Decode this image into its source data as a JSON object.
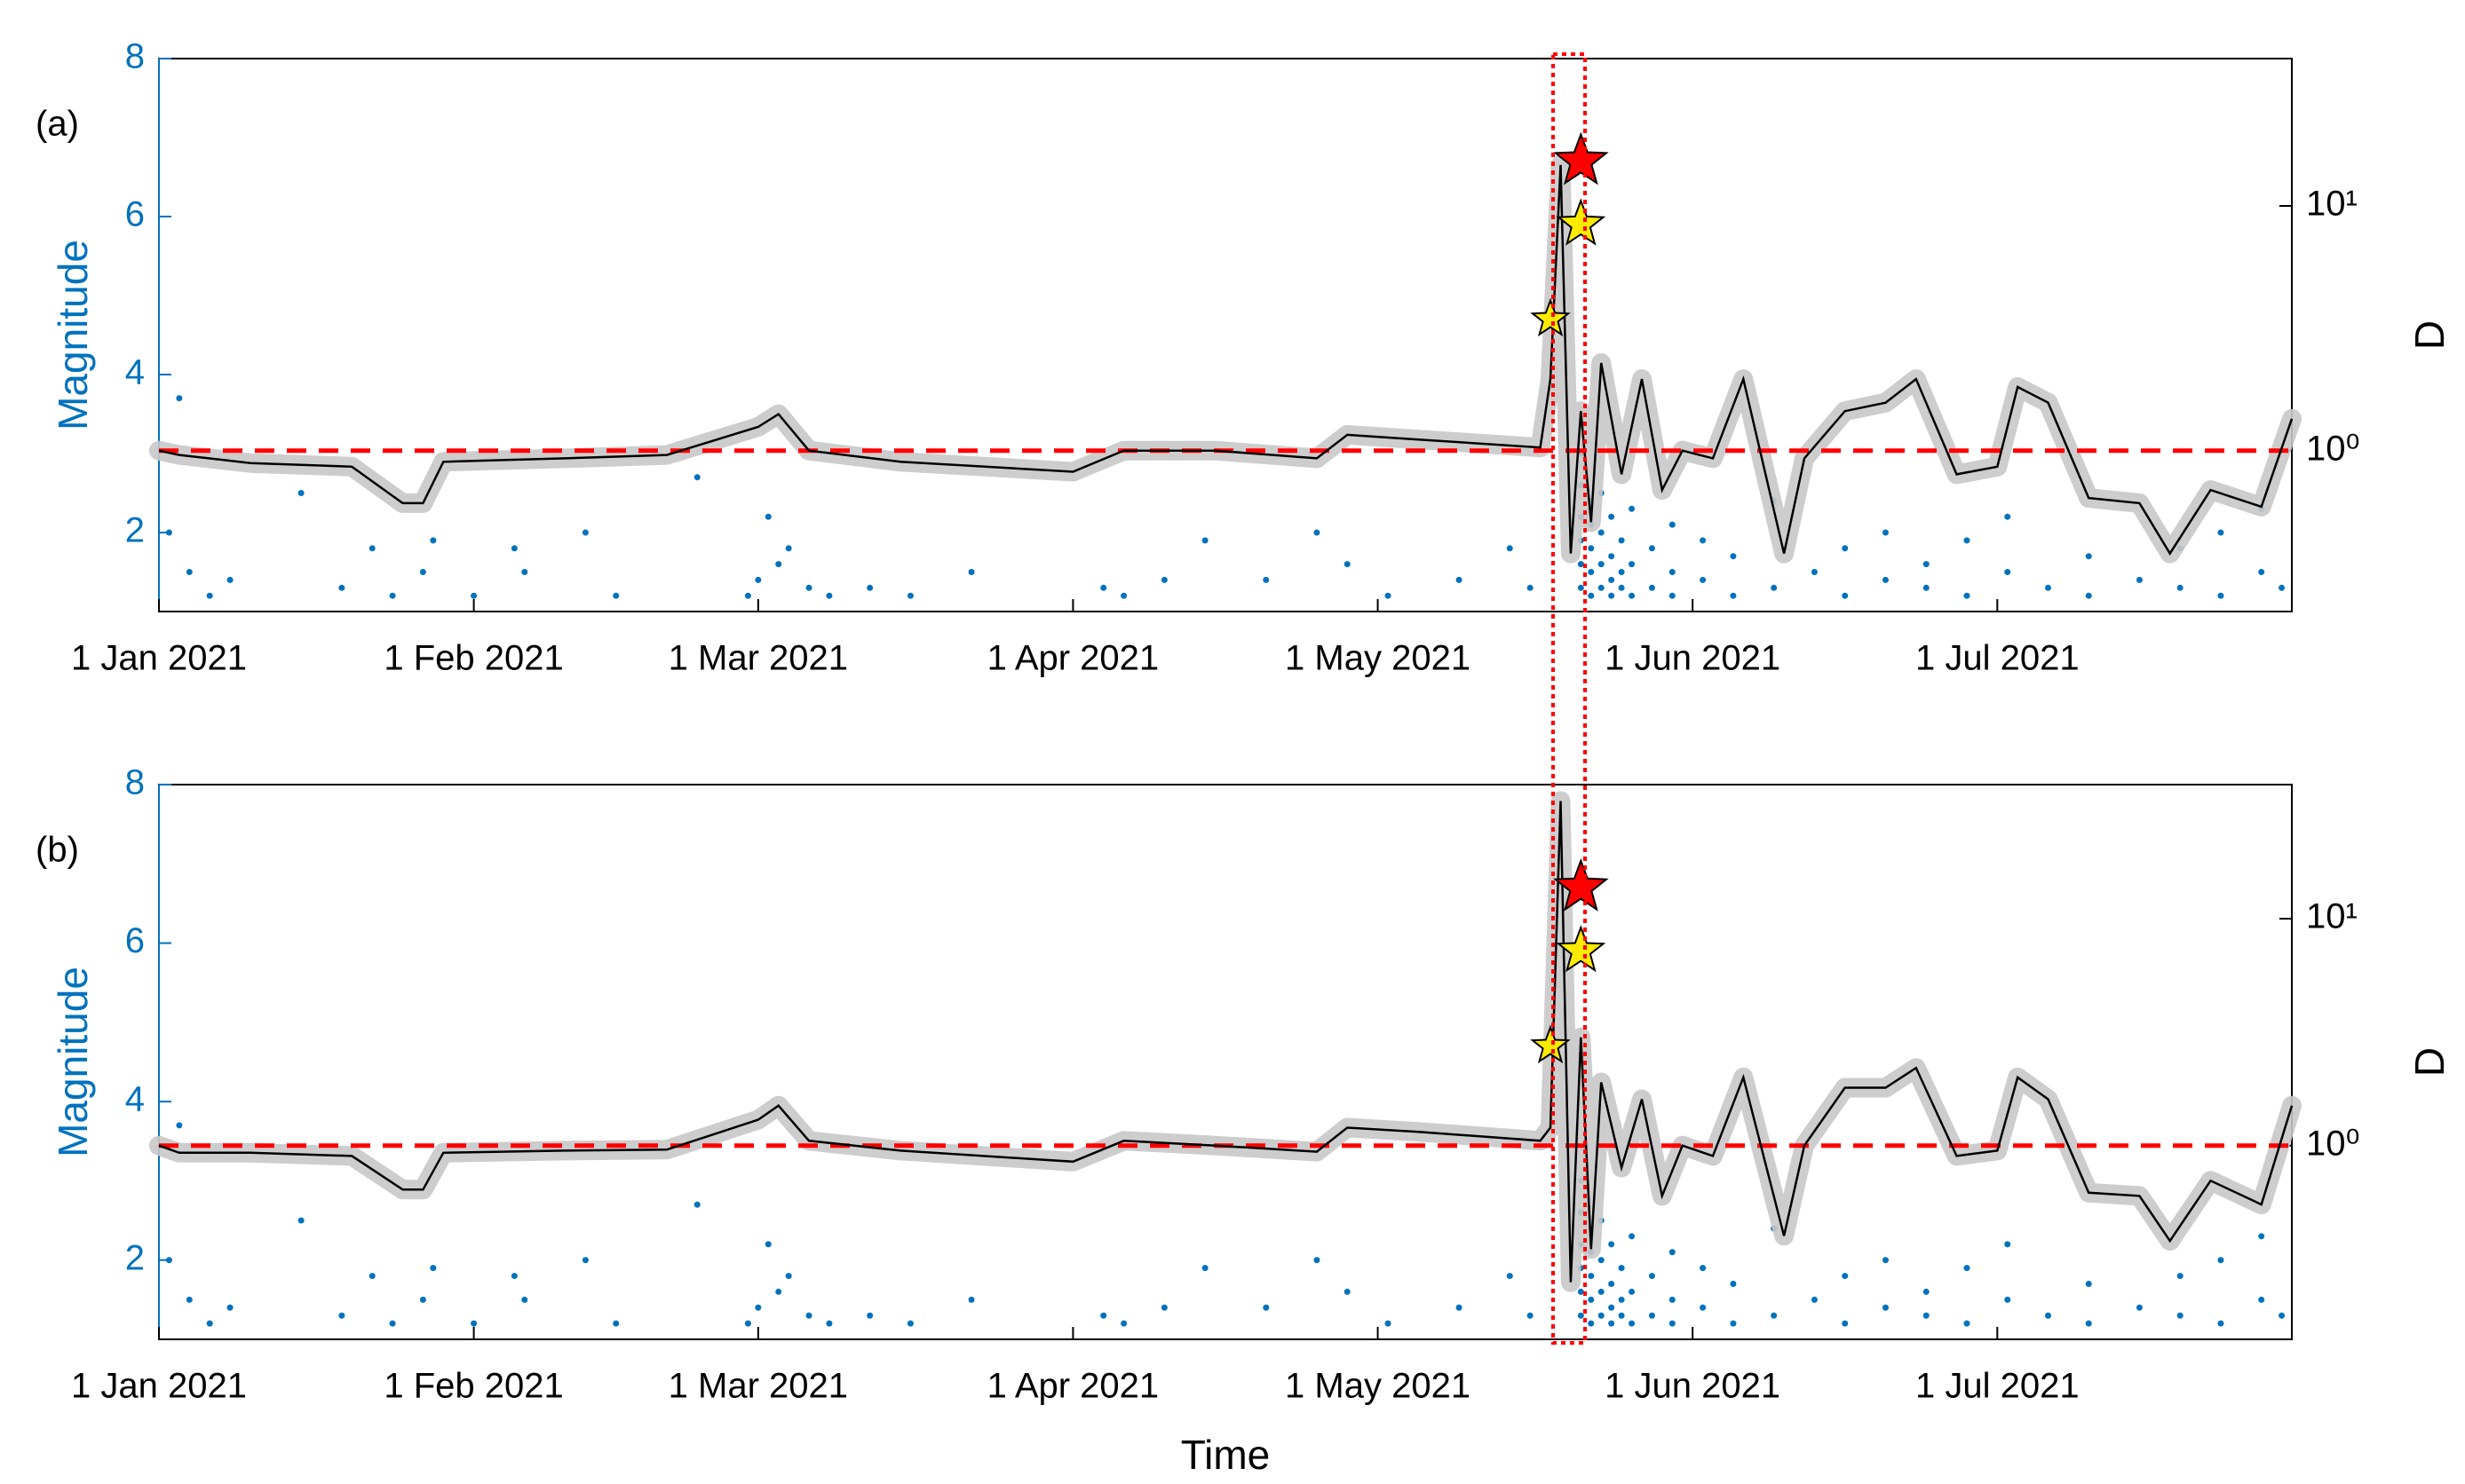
{
  "chart_data": [
    {
      "type": "combo",
      "label": "(a)",
      "ylabel": "Magnitude",
      "y2label": "D",
      "xlim": [
        "2021-01-01",
        "2021-07-30"
      ],
      "xticks": [
        {
          "value": "2021-01-01",
          "label": "1 Jan 2021"
        },
        {
          "value": "2021-02-01",
          "label": "1 Feb 2021"
        },
        {
          "value": "2021-03-01",
          "label": "1 Mar 2021"
        },
        {
          "value": "2021-04-01",
          "label": "1 Apr 2021"
        },
        {
          "value": "2021-05-01",
          "label": "1 May 2021"
        },
        {
          "value": "2021-06-01",
          "label": "1 Jun 2021"
        },
        {
          "value": "2021-07-01",
          "label": "1 Jul 2021"
        }
      ],
      "ylim": [
        1,
        8
      ],
      "yticks": [
        2,
        4,
        6,
        8
      ],
      "y2lim": [
        0.22,
        40
      ],
      "y2scale": "log",
      "y2ticks": [
        {
          "value": 1,
          "label": "10⁰"
        },
        {
          "value": 10,
          "label": "10¹"
        }
      ],
      "hline": {
        "value": 1,
        "axis": "y2",
        "color": "#ff0000"
      },
      "series": [
        {
          "type": "scatter",
          "color": "#0072bd",
          "x": [
            "2021-01-02",
            "2021-01-03",
            "2021-01-04",
            "2021-01-06",
            "2021-01-08",
            "2021-01-15",
            "2021-01-19",
            "2021-01-22",
            "2021-01-24",
            "2021-01-27",
            "2021-01-28",
            "2021-02-01",
            "2021-02-05",
            "2021-02-06",
            "2021-02-12",
            "2021-02-15",
            "2021-02-23",
            "2021-02-28",
            "2021-03-01",
            "2021-03-02",
            "2021-03-03",
            "2021-03-04",
            "2021-03-06",
            "2021-03-08",
            "2021-03-12",
            "2021-03-16",
            "2021-03-22",
            "2021-04-04",
            "2021-04-06",
            "2021-04-10",
            "2021-04-14",
            "2021-04-20",
            "2021-04-25",
            "2021-04-28",
            "2021-05-02",
            "2021-05-09",
            "2021-05-14",
            "2021-05-16",
            "2021-05-21",
            "2021-05-21",
            "2021-05-21",
            "2021-05-21",
            "2021-05-21",
            "2021-05-21",
            "2021-05-22",
            "2021-05-22",
            "2021-05-22",
            "2021-05-22",
            "2021-05-22",
            "2021-05-23",
            "2021-05-23",
            "2021-05-23",
            "2021-05-23",
            "2021-05-24",
            "2021-05-24",
            "2021-05-24",
            "2021-05-24",
            "2021-05-25",
            "2021-05-25",
            "2021-05-25",
            "2021-05-26",
            "2021-05-26",
            "2021-05-26",
            "2021-05-28",
            "2021-05-28",
            "2021-05-30",
            "2021-05-30",
            "2021-05-30",
            "2021-06-02",
            "2021-06-02",
            "2021-06-05",
            "2021-06-05",
            "2021-06-09",
            "2021-06-09",
            "2021-06-13",
            "2021-06-16",
            "2021-06-16",
            "2021-06-20",
            "2021-06-20",
            "2021-06-24",
            "2021-06-24",
            "2021-06-28",
            "2021-06-28",
            "2021-07-02",
            "2021-07-02",
            "2021-07-06",
            "2021-07-10",
            "2021-07-10",
            "2021-07-15",
            "2021-07-19",
            "2021-07-19",
            "2021-07-23",
            "2021-07-23",
            "2021-07-27",
            "2021-07-27",
            "2021-07-29"
          ],
          "values": [
            2.0,
            3.7,
            1.5,
            1.2,
            1.4,
            2.5,
            1.3,
            1.8,
            1.2,
            1.5,
            1.9,
            1.2,
            1.8,
            1.5,
            2.0,
            1.2,
            2.7,
            1.2,
            1.4,
            2.2,
            1.6,
            1.8,
            1.3,
            1.2,
            1.3,
            1.2,
            1.5,
            1.3,
            1.2,
            1.4,
            1.9,
            1.4,
            2.0,
            1.6,
            1.2,
            1.4,
            1.8,
            1.3,
            1.3,
            1.6,
            1.9,
            2.2,
            2.6,
            3.0,
            1.2,
            1.5,
            1.8,
            2.1,
            2.4,
            1.3,
            1.6,
            2.0,
            2.5,
            1.2,
            1.4,
            1.7,
            2.2,
            1.3,
            1.5,
            1.9,
            1.2,
            1.6,
            2.3,
            1.3,
            1.8,
            1.2,
            1.5,
            2.1,
            1.4,
            1.9,
            1.2,
            1.7,
            1.3,
            2.4,
            1.5,
            1.2,
            1.8,
            1.4,
            2.0,
            1.3,
            1.6,
            1.2,
            1.9,
            1.5,
            2.2,
            1.3,
            1.2,
            1.7,
            1.4,
            1.3,
            1.8,
            1.2,
            2.0,
            1.5,
            2.3,
            1.3
          ]
        },
        {
          "type": "line",
          "axis": "y2",
          "color": "#000000",
          "x": [
            "2021-01-01",
            "2021-01-03",
            "2021-01-10",
            "2021-01-20",
            "2021-01-25",
            "2021-01-27",
            "2021-01-29",
            "2021-02-10",
            "2021-02-20",
            "2021-03-01",
            "2021-03-03",
            "2021-03-06",
            "2021-03-15",
            "2021-04-01",
            "2021-04-06",
            "2021-04-15",
            "2021-04-25",
            "2021-04-28",
            "2021-05-05",
            "2021-05-17",
            "2021-05-18",
            "2021-05-19",
            "2021-05-20",
            "2021-05-21",
            "2021-05-22",
            "2021-05-23",
            "2021-05-25",
            "2021-05-27",
            "2021-05-29",
            "2021-05-31",
            "2021-06-03",
            "2021-06-06",
            "2021-06-10",
            "2021-06-12",
            "2021-06-16",
            "2021-06-20",
            "2021-06-23",
            "2021-06-27",
            "2021-07-01",
            "2021-07-03",
            "2021-07-06",
            "2021-07-10",
            "2021-07-15",
            "2021-07-18",
            "2021-07-22",
            "2021-07-27",
            "2021-07-30"
          ],
          "values": [
            1.0,
            0.96,
            0.89,
            0.86,
            0.61,
            0.61,
            0.9,
            0.93,
            0.96,
            1.25,
            1.41,
            1.0,
            0.9,
            0.82,
            1.0,
            1.0,
            0.93,
            1.16,
            1.11,
            1.03,
            1.96,
            14.7,
            0.38,
            1.45,
            0.51,
            2.28,
            0.8,
            1.96,
            0.69,
            1.0,
            0.93,
            1.96,
            0.38,
            0.93,
            1.45,
            1.57,
            1.96,
            0.8,
            0.86,
            1.82,
            1.57,
            0.64,
            0.61,
            0.38,
            0.69,
            0.59,
            1.35
          ]
        },
        {
          "type": "star",
          "x": [
            "2021-05-18",
            "2021-05-21",
            "2021-05-21"
          ],
          "values": [
            4.7,
            6.7,
            5.9
          ],
          "colors": [
            "#ffeb00",
            "#ff0000",
            "#ffeb00"
          ]
        }
      ]
    },
    {
      "type": "combo",
      "label": "(b)",
      "ylabel": "Magnitude",
      "y2label": "D",
      "xlabel": "Time",
      "xlim": [
        "2021-01-01",
        "2021-07-30"
      ],
      "xticks": [
        {
          "value": "2021-01-01",
          "label": "1 Jan 2021"
        },
        {
          "value": "2021-02-01",
          "label": "1 Feb 2021"
        },
        {
          "value": "2021-03-01",
          "label": "1 Mar 2021"
        },
        {
          "value": "2021-04-01",
          "label": "1 Apr 2021"
        },
        {
          "value": "2021-05-01",
          "label": "1 May 2021"
        },
        {
          "value": "2021-06-01",
          "label": "1 Jun 2021"
        },
        {
          "value": "2021-07-01",
          "label": "1 Jul 2021"
        }
      ],
      "ylim": [
        1,
        8
      ],
      "yticks": [
        2,
        4,
        6,
        8
      ],
      "y2lim": [
        0.14,
        39
      ],
      "y2scale": "log",
      "y2ticks": [
        {
          "value": 1,
          "label": "10⁰"
        },
        {
          "value": 10,
          "label": "10¹"
        }
      ],
      "hline": {
        "value": 1,
        "axis": "y2",
        "color": "#ff0000"
      },
      "series": [
        {
          "type": "scatter",
          "color": "#0072bd",
          "x": [
            "2021-01-02",
            "2021-01-03",
            "2021-01-04",
            "2021-01-06",
            "2021-01-08",
            "2021-01-15",
            "2021-01-19",
            "2021-01-22",
            "2021-01-24",
            "2021-01-27",
            "2021-01-28",
            "2021-02-01",
            "2021-02-05",
            "2021-02-06",
            "2021-02-12",
            "2021-02-15",
            "2021-02-23",
            "2021-02-28",
            "2021-03-01",
            "2021-03-02",
            "2021-03-03",
            "2021-03-04",
            "2021-03-06",
            "2021-03-08",
            "2021-03-12",
            "2021-03-16",
            "2021-03-22",
            "2021-04-04",
            "2021-04-06",
            "2021-04-10",
            "2021-04-14",
            "2021-04-20",
            "2021-04-25",
            "2021-04-28",
            "2021-05-02",
            "2021-05-09",
            "2021-05-14",
            "2021-05-16",
            "2021-05-21",
            "2021-05-21",
            "2021-05-21",
            "2021-05-21",
            "2021-05-21",
            "2021-05-21",
            "2021-05-22",
            "2021-05-22",
            "2021-05-22",
            "2021-05-22",
            "2021-05-22",
            "2021-05-23",
            "2021-05-23",
            "2021-05-23",
            "2021-05-23",
            "2021-05-24",
            "2021-05-24",
            "2021-05-24",
            "2021-05-24",
            "2021-05-25",
            "2021-05-25",
            "2021-05-25",
            "2021-05-26",
            "2021-05-26",
            "2021-05-26",
            "2021-05-28",
            "2021-05-28",
            "2021-05-30",
            "2021-05-30",
            "2021-05-30",
            "2021-06-02",
            "2021-06-02",
            "2021-06-05",
            "2021-06-05",
            "2021-06-09",
            "2021-06-09",
            "2021-06-13",
            "2021-06-16",
            "2021-06-16",
            "2021-06-20",
            "2021-06-20",
            "2021-06-24",
            "2021-06-24",
            "2021-06-28",
            "2021-06-28",
            "2021-07-02",
            "2021-07-02",
            "2021-07-06",
            "2021-07-10",
            "2021-07-10",
            "2021-07-15",
            "2021-07-19",
            "2021-07-19",
            "2021-07-23",
            "2021-07-23",
            "2021-07-27",
            "2021-07-27",
            "2021-07-29"
          ],
          "values": [
            2.0,
            3.7,
            1.5,
            1.2,
            1.4,
            2.5,
            1.3,
            1.8,
            1.2,
            1.5,
            1.9,
            1.2,
            1.8,
            1.5,
            2.0,
            1.2,
            2.7,
            1.2,
            1.4,
            2.2,
            1.6,
            1.8,
            1.3,
            1.2,
            1.3,
            1.2,
            1.5,
            1.3,
            1.2,
            1.4,
            1.9,
            1.4,
            2.0,
            1.6,
            1.2,
            1.4,
            1.8,
            1.3,
            1.3,
            1.6,
            1.9,
            2.2,
            2.6,
            3.0,
            1.2,
            1.5,
            1.8,
            2.1,
            2.4,
            1.3,
            1.6,
            2.0,
            2.5,
            1.2,
            1.4,
            1.7,
            2.2,
            1.3,
            1.5,
            1.9,
            1.2,
            1.6,
            2.3,
            1.3,
            1.8,
            1.2,
            1.5,
            2.1,
            1.4,
            1.9,
            1.2,
            1.7,
            1.3,
            2.4,
            1.5,
            1.2,
            1.8,
            1.4,
            2.0,
            1.3,
            1.6,
            1.2,
            1.9,
            1.5,
            2.2,
            1.3,
            1.2,
            1.7,
            1.4,
            1.3,
            1.8,
            1.2,
            2.0,
            1.5,
            2.3,
            1.3
          ]
        },
        {
          "type": "line",
          "axis": "y2",
          "color": "#000000",
          "x": [
            "2021-01-01",
            "2021-01-03",
            "2021-01-10",
            "2021-01-20",
            "2021-01-25",
            "2021-01-27",
            "2021-01-29",
            "2021-02-10",
            "2021-02-20",
            "2021-03-01",
            "2021-03-03",
            "2021-03-06",
            "2021-03-15",
            "2021-04-01",
            "2021-04-06",
            "2021-04-15",
            "2021-04-25",
            "2021-04-28",
            "2021-05-05",
            "2021-05-17",
            "2021-05-18",
            "2021-05-19",
            "2021-05-20",
            "2021-05-21",
            "2021-05-22",
            "2021-05-23",
            "2021-05-25",
            "2021-05-27",
            "2021-05-29",
            "2021-05-31",
            "2021-06-03",
            "2021-06-06",
            "2021-06-10",
            "2021-06-12",
            "2021-06-16",
            "2021-06-20",
            "2021-06-23",
            "2021-06-27",
            "2021-07-01",
            "2021-07-03",
            "2021-07-06",
            "2021-07-10",
            "2021-07-15",
            "2021-07-18",
            "2021-07-22",
            "2021-07-27",
            "2021-07-30"
          ],
          "values": [
            1.0,
            0.93,
            0.93,
            0.9,
            0.64,
            0.64,
            0.93,
            0.95,
            0.96,
            1.3,
            1.5,
            1.05,
            0.95,
            0.85,
            1.05,
            1.0,
            0.94,
            1.2,
            1.15,
            1.05,
            1.2,
            33,
            0.25,
            3.0,
            0.35,
            1.9,
            0.8,
            1.6,
            0.6,
            1.0,
            0.9,
            2.0,
            0.4,
            1.0,
            1.8,
            1.8,
            2.2,
            0.9,
            0.95,
            2.0,
            1.6,
            0.62,
            0.6,
            0.38,
            0.7,
            0.55,
            1.5
          ]
        },
        {
          "type": "star",
          "x": [
            "2021-05-18",
            "2021-05-21",
            "2021-05-21"
          ],
          "values": [
            4.7,
            6.7,
            5.9
          ],
          "colors": [
            "#ffeb00",
            "#ff0000",
            "#ffeb00"
          ]
        }
      ]
    }
  ]
}
